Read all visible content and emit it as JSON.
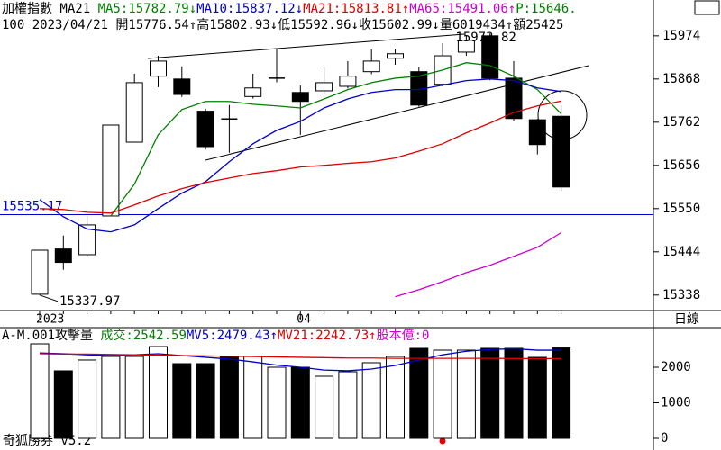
{
  "header": {
    "line1": [
      {
        "text": "加權指數 MA21 ",
        "color": "#000000"
      },
      {
        "text": "MA5:15782.79↓",
        "color": "#008000"
      },
      {
        "text": "MA10:15837.12↓",
        "color": "#0000cc"
      },
      {
        "text": "MA21:15813.81↑",
        "color": "#dd0000"
      },
      {
        "text": "MA65:15491.06↑",
        "color": "#cc00cc"
      },
      {
        "text": "P:15646.",
        "color": "#008000"
      }
    ],
    "line2": [
      {
        "text": "100 2023/04/21 開15776.54↑高15802.93↓低15592.96↓收15602.99↓量6019434↑額25425",
        "color": "#000000"
      }
    ]
  },
  "period": "日線",
  "footer": "奇狐勝券 v5.2",
  "chart_data": [
    {
      "type": "candlestick",
      "categories": [
        "2023",
        null,
        null,
        null,
        null,
        null,
        null,
        null,
        null,
        null,
        null,
        "04",
        null,
        null,
        null,
        null,
        null,
        null,
        null,
        null,
        null,
        null,
        null
      ],
      "open": [
        15340,
        15451,
        15437,
        15532,
        15713,
        15875,
        15868,
        15789,
        15770,
        15825,
        15870,
        15835,
        15839,
        15850,
        15886,
        15919,
        15886,
        15855,
        15934,
        15974,
        15870,
        15768,
        15776.54
      ],
      "high": [
        15448,
        15484,
        15532,
        15755,
        15881,
        15925,
        15899,
        15795,
        15804,
        15881,
        15941,
        15852,
        15897,
        15912,
        15941,
        15941,
        15897,
        15956,
        15973.82,
        15980,
        15912,
        15770,
        15802.93
      ],
      "low": [
        15337.97,
        15400,
        15434,
        15532,
        15713,
        15848,
        15824,
        15695,
        15687,
        15820,
        15860,
        15731,
        15830,
        15845,
        15880,
        15903,
        15800,
        15850,
        15925,
        15865,
        15765,
        15683,
        15592.96
      ],
      "close": [
        15448,
        15418,
        15510,
        15755,
        15859,
        15912,
        15830,
        15702,
        15768,
        15846,
        15872,
        15813,
        15859,
        15875,
        15912,
        15930,
        15804,
        15925,
        15963,
        15870,
        15771,
        15707,
        15602.99
      ],
      "up_color": "#ffffff",
      "down_color": "#000000",
      "series": [
        {
          "color": "#008000",
          "values": [
            null,
            null,
            null,
            15532,
            15610,
            15731,
            15793,
            15813,
            15813,
            15806,
            15802,
            15797,
            15819,
            15842,
            15859,
            15870,
            15875,
            15890,
            15908,
            15901,
            15875,
            15842,
            15782.79
          ]
        },
        {
          "color": "#0000cc",
          "values": [
            15572,
            15530,
            15500,
            15493,
            15510,
            15550,
            15588,
            15616,
            15665,
            15709,
            15742,
            15764,
            15797,
            15819,
            15835,
            15842,
            15842,
            15853,
            15864,
            15868,
            15864,
            15846,
            15837.12
          ]
        },
        {
          "color": "#dd0000",
          "values": [
            15550,
            15548,
            15541,
            15539,
            15559,
            15581,
            15599,
            15614,
            15625,
            15636,
            15643,
            15652,
            15656,
            15661,
            15665,
            15674,
            15691,
            15709,
            15736,
            15760,
            15786,
            15802,
            15813.81
          ]
        },
        {
          "color": "#cc00cc",
          "values": [
            null,
            null,
            null,
            null,
            null,
            null,
            null,
            null,
            null,
            null,
            null,
            null,
            null,
            null,
            null,
            15334,
            15351,
            15371,
            15393,
            15411,
            15433,
            15455,
            15491.06
          ]
        }
      ],
      "hline": 15535.17,
      "hline_color": "#0000cc",
      "ylim": [
        15300,
        16062
      ],
      "yticks": [
        15338,
        15444,
        15550,
        15656,
        15762,
        15868,
        15974
      ]
    },
    {
      "type": "volume",
      "legend": [
        {
          "text": "A-M.001攻擊量 ",
          "color": "#000000"
        },
        {
          "text": "成交:2542.59",
          "color": "#008000"
        },
        {
          "text": "MV5:2479.43↑",
          "color": "#0000cc"
        },
        {
          "text": "MV21:2242.73↑",
          "color": "#dd0000"
        },
        {
          "text": "股本億:0",
          "color": "#cc00cc"
        }
      ],
      "values": [
        2658,
        1899,
        2203,
        2304,
        2304,
        2582,
        2101,
        2101,
        2304,
        2304,
        2000,
        2000,
        1747,
        1873,
        2127,
        2304,
        2532,
        2481,
        2481,
        2532,
        2532,
        2278,
        2542.59
      ],
      "series": [
        {
          "color": "#0000cc",
          "values": [
            2400,
            2380,
            2350,
            2330,
            2350,
            2380,
            2330,
            2280,
            2230,
            2150,
            2060,
            2000,
            1920,
            1900,
            1950,
            2050,
            2200,
            2350,
            2450,
            2500,
            2520,
            2480,
            2479.43
          ]
        },
        {
          "color": "#dd0000",
          "values": [
            2380,
            2370,
            2370,
            2360,
            2350,
            2340,
            2330,
            2320,
            2310,
            2300,
            2290,
            2280,
            2270,
            2260,
            2260,
            2250,
            2250,
            2250,
            2250,
            2250,
            2245,
            2244,
            2242.73
          ]
        }
      ],
      "ylim": [
        0,
        3000
      ],
      "yticks": [
        0,
        1000,
        2000
      ]
    }
  ]
}
